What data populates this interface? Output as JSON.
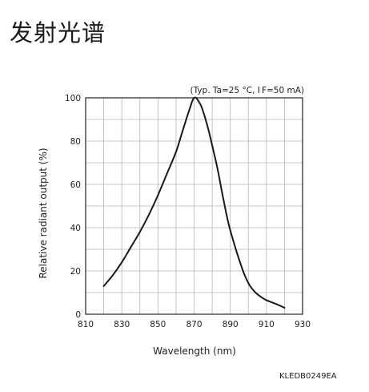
{
  "page": {
    "title": "发射光谱"
  },
  "chart_data": {
    "type": "line",
    "annotation": "(Typ. Ta=25 °C, I F=50 mA)",
    "xlabel": "Wavelength (nm)",
    "ylabel": "Relative radiant output (%)",
    "xlim": [
      810,
      930
    ],
    "ylim": [
      0,
      100
    ],
    "xticks": [
      "810",
      "830",
      "850",
      "870",
      "890",
      "910",
      "930"
    ],
    "yticks": [
      "0",
      "20",
      "40",
      "60",
      "80",
      "100"
    ],
    "grid": true,
    "series": [
      {
        "x": [
          820,
          825,
          830,
          835,
          840,
          845,
          850,
          855,
          860,
          863,
          866,
          868,
          869,
          870,
          871,
          872,
          874,
          876,
          878,
          880,
          883,
          886,
          889,
          892,
          895,
          898,
          901,
          904,
          907,
          910,
          913,
          916,
          920
        ],
        "y": [
          13,
          18,
          24,
          31,
          38,
          46,
          55,
          65,
          75,
          83,
          91,
          96,
          98.5,
          100,
          100,
          99,
          96,
          91,
          85,
          78,
          67,
          54,
          42,
          33,
          25,
          18,
          13,
          10,
          8,
          6.5,
          5.5,
          4.5,
          3
        ]
      }
    ]
  },
  "footer": {
    "code": "KLEDB0249EA"
  }
}
